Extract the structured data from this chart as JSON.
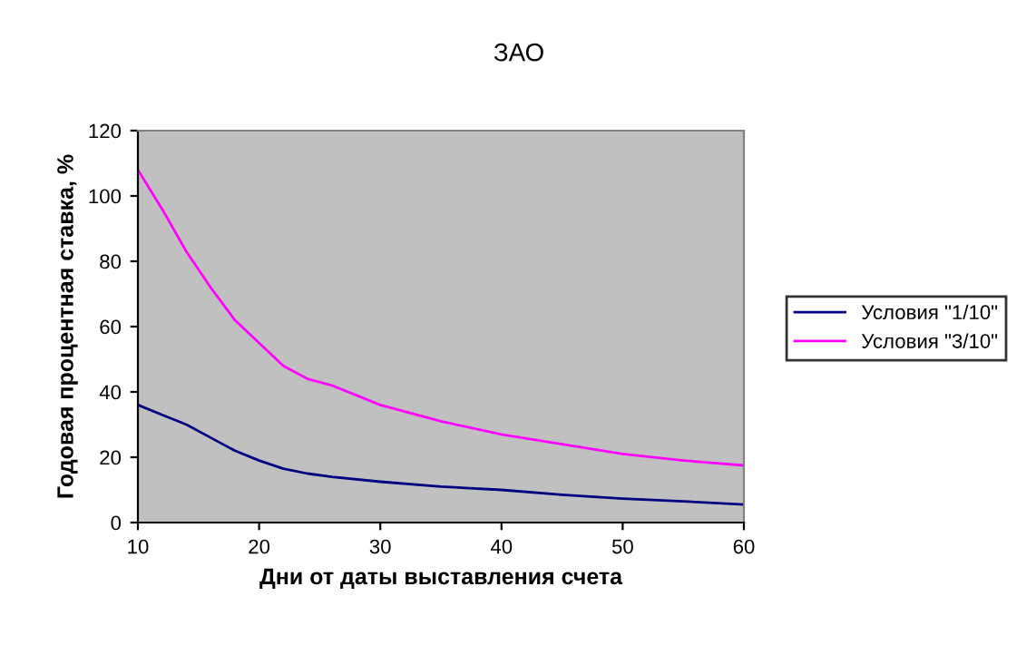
{
  "chart_data": {
    "type": "line",
    "title": "ЗАО",
    "xlabel": "Дни от даты выставления счета",
    "ylabel": "Годовая процентная ставка, %",
    "x": [
      10,
      12,
      14,
      16,
      18,
      20,
      22,
      24,
      26,
      30,
      35,
      40,
      45,
      50,
      55,
      60
    ],
    "series": [
      {
        "name": "Условия \"1/10\"",
        "color": "#000080",
        "values": [
          36,
          33,
          30,
          26,
          22,
          19,
          16.5,
          15,
          14,
          12.5,
          11,
          10,
          8.5,
          7.3,
          6.5,
          5.5
        ]
      },
      {
        "name": "Условия \"3/10\"",
        "color": "#ff00ff",
        "values": [
          108,
          96,
          83,
          72,
          62,
          55,
          48,
          44,
          42,
          36,
          31,
          27,
          24,
          21,
          19,
          17.5
        ]
      }
    ],
    "xlim": [
      10,
      60
    ],
    "ylim": [
      0,
      120
    ],
    "xticks": [
      10,
      20,
      30,
      40,
      50,
      60
    ],
    "yticks": [
      0,
      20,
      40,
      60,
      80,
      100,
      120
    ],
    "grid": false,
    "legend": "right",
    "marker": "none",
    "line_style": "solid"
  }
}
